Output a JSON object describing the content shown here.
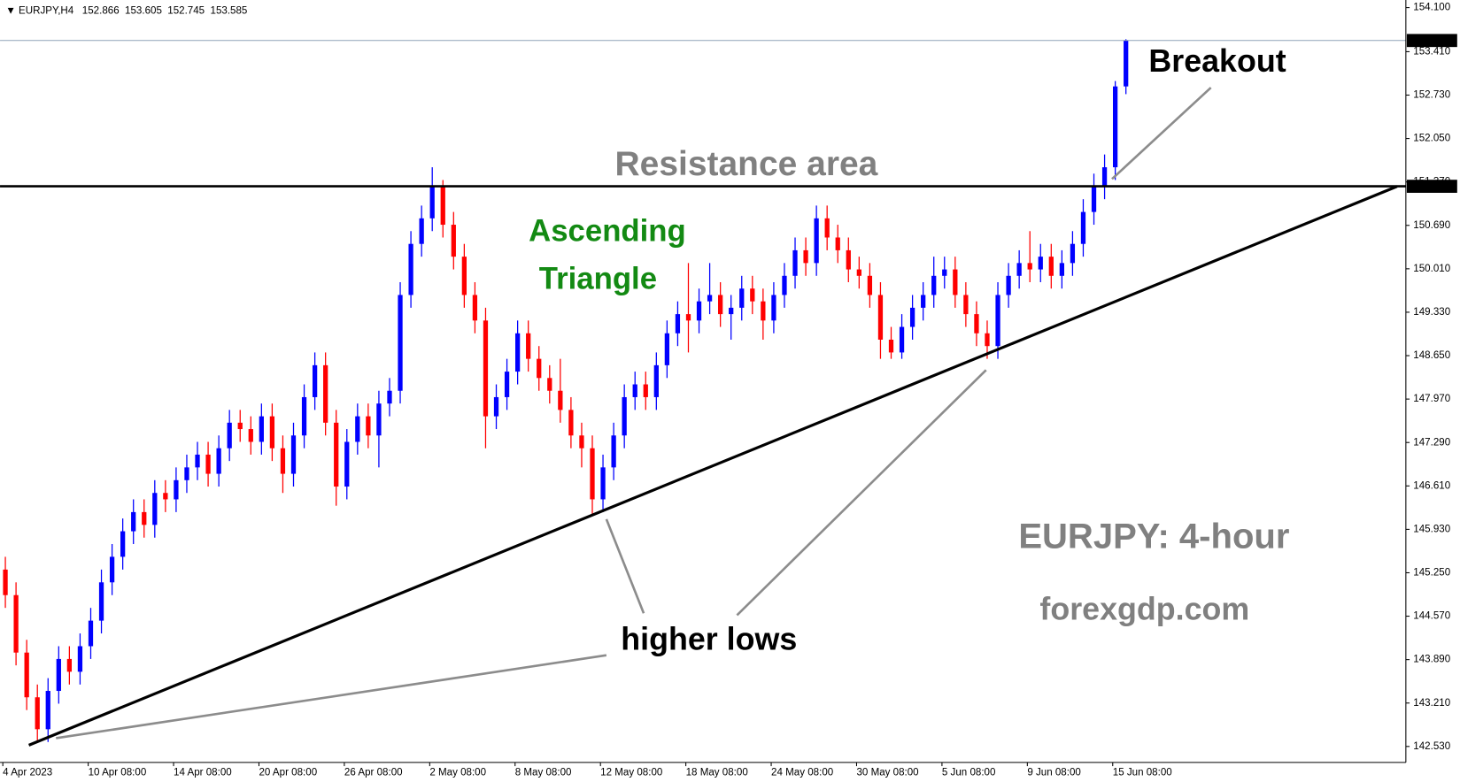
{
  "chart_data": {
    "type": "candlestick",
    "symbol": "EURJPY,H4",
    "categories": [
      "4 Apr 2023",
      null,
      null,
      null,
      null,
      null,
      null,
      null,
      "10 Apr 08:00",
      null,
      null,
      null,
      null,
      null,
      null,
      null,
      "14 Apr 08:00",
      null,
      null,
      null,
      null,
      null,
      null,
      null,
      "20 Apr 08:00",
      null,
      null,
      null,
      null,
      null,
      null,
      null,
      "26 Apr 08:00",
      null,
      null,
      null,
      null,
      null,
      null,
      null,
      "2 May 08:00",
      null,
      null,
      null,
      null,
      null,
      null,
      null,
      "8 May 08:00",
      null,
      null,
      null,
      null,
      null,
      null,
      null,
      "12 May 08:00",
      null,
      null,
      null,
      null,
      null,
      null,
      null,
      "18 May 08:00",
      null,
      null,
      null,
      null,
      null,
      null,
      null,
      "24 May 08:00",
      null,
      null,
      null,
      null,
      null,
      null,
      null,
      "30 May 08:00",
      null,
      null,
      null,
      null,
      null,
      null,
      null,
      "5 Jun 08:00",
      null,
      null,
      null,
      null,
      null,
      null,
      null,
      "9 Jun 08:00",
      null,
      null,
      null,
      null,
      null,
      null,
      null,
      "15 Jun 08:00",
      null
    ],
    "series": [
      {
        "up_color": "#0000ff",
        "down_color": "#ff0000",
        "open": [
          145.3,
          144.9,
          144.0,
          143.3,
          142.8,
          143.4,
          143.9,
          143.7,
          144.1,
          144.5,
          145.1,
          145.5,
          145.9,
          146.2,
          146.0,
          146.5,
          146.4,
          146.7,
          146.9,
          147.1,
          146.8,
          147.2,
          147.6,
          147.5,
          147.3,
          147.7,
          147.2,
          146.8,
          147.4,
          148.0,
          148.5,
          147.6,
          146.6,
          147.3,
          147.7,
          147.4,
          147.9,
          148.1,
          149.6,
          150.4,
          150.8,
          151.3,
          150.7,
          150.2,
          149.6,
          149.2,
          147.7,
          148.0,
          148.4,
          149.0,
          148.6,
          148.3,
          148.1,
          147.8,
          147.4,
          147.2,
          146.4,
          146.9,
          147.4,
          148.0,
          148.2,
          148.0,
          148.5,
          149.0,
          149.3,
          149.2,
          149.5,
          149.6,
          149.3,
          149.4,
          149.7,
          149.5,
          149.2,
          149.6,
          149.9,
          150.3,
          150.1,
          150.8,
          150.5,
          150.3,
          150.0,
          149.9,
          149.6,
          148.9,
          148.7,
          149.1,
          149.4,
          149.6,
          149.9,
          150.0,
          149.6,
          149.3,
          149.0,
          148.8,
          149.6,
          149.9,
          150.1,
          150.0,
          150.2,
          149.9,
          150.1,
          150.4,
          150.9,
          151.3,
          151.6,
          152.866
        ],
        "high": [
          145.5,
          145.1,
          144.2,
          143.5,
          143.6,
          144.1,
          144.1,
          144.3,
          144.7,
          145.3,
          145.7,
          146.1,
          146.4,
          146.4,
          146.7,
          146.7,
          146.9,
          147.1,
          147.3,
          147.3,
          147.4,
          147.8,
          147.8,
          147.7,
          147.9,
          147.9,
          147.4,
          147.6,
          148.2,
          148.7,
          148.7,
          147.8,
          147.5,
          147.9,
          147.9,
          148.1,
          148.3,
          149.8,
          150.6,
          151.0,
          151.6,
          151.4,
          150.9,
          150.4,
          149.8,
          149.4,
          148.2,
          148.6,
          149.2,
          149.2,
          148.8,
          148.5,
          148.6,
          148.0,
          147.6,
          147.4,
          147.1,
          147.6,
          148.2,
          148.4,
          148.4,
          148.7,
          149.2,
          149.5,
          150.1,
          149.7,
          150.1,
          149.8,
          149.6,
          149.9,
          149.9,
          149.7,
          149.8,
          150.1,
          150.5,
          150.5,
          151.0,
          151.0,
          150.7,
          150.5,
          150.2,
          150.1,
          149.8,
          149.1,
          149.3,
          149.6,
          149.8,
          150.2,
          150.2,
          150.2,
          149.8,
          149.5,
          149.2,
          149.8,
          150.1,
          150.3,
          150.6,
          150.4,
          150.4,
          150.3,
          150.6,
          151.1,
          151.5,
          151.8,
          152.95,
          153.605
        ],
        "low": [
          144.7,
          143.8,
          143.1,
          142.6,
          142.6,
          143.2,
          143.5,
          143.5,
          143.9,
          144.3,
          144.9,
          145.3,
          145.7,
          145.8,
          145.8,
          146.2,
          146.2,
          146.5,
          146.7,
          146.6,
          146.6,
          147.0,
          147.3,
          147.1,
          147.1,
          147.0,
          146.5,
          146.6,
          147.2,
          147.8,
          147.4,
          146.3,
          146.4,
          147.1,
          147.2,
          146.9,
          147.7,
          147.9,
          149.4,
          150.2,
          150.6,
          150.5,
          150.0,
          149.4,
          149.0,
          147.2,
          147.5,
          147.8,
          148.2,
          148.4,
          148.1,
          147.9,
          147.6,
          147.2,
          146.9,
          146.15,
          146.2,
          146.7,
          147.2,
          147.8,
          147.8,
          147.8,
          148.3,
          148.8,
          148.7,
          149.0,
          149.3,
          149.1,
          148.9,
          149.2,
          149.3,
          148.9,
          149.0,
          149.4,
          149.7,
          149.9,
          149.9,
          150.3,
          150.1,
          149.8,
          149.7,
          149.4,
          148.6,
          148.6,
          148.6,
          148.9,
          149.2,
          149.4,
          149.7,
          149.4,
          149.1,
          148.8,
          148.6,
          148.6,
          149.4,
          149.7,
          149.8,
          149.8,
          149.7,
          149.7,
          149.9,
          150.2,
          150.7,
          151.1,
          151.4,
          152.745
        ],
        "close": [
          144.9,
          144.0,
          143.3,
          142.8,
          143.4,
          143.9,
          143.7,
          144.1,
          144.5,
          145.1,
          145.5,
          145.9,
          146.2,
          146.0,
          146.5,
          146.4,
          146.7,
          146.9,
          147.1,
          146.8,
          147.2,
          147.6,
          147.5,
          147.3,
          147.7,
          147.2,
          146.8,
          147.4,
          148.0,
          148.5,
          147.6,
          146.6,
          147.3,
          147.7,
          147.4,
          147.9,
          148.1,
          149.6,
          150.4,
          150.8,
          151.3,
          150.7,
          150.2,
          149.6,
          149.2,
          147.7,
          148.0,
          148.4,
          149.0,
          148.6,
          148.3,
          148.1,
          147.8,
          147.4,
          147.2,
          146.4,
          146.9,
          147.4,
          148.0,
          148.2,
          148.0,
          148.5,
          149.0,
          149.3,
          149.2,
          149.5,
          149.6,
          149.3,
          149.4,
          149.7,
          149.5,
          149.2,
          149.6,
          149.9,
          150.3,
          150.1,
          150.8,
          150.5,
          150.3,
          150.0,
          149.9,
          149.6,
          148.9,
          148.7,
          149.1,
          149.4,
          149.6,
          149.9,
          150.0,
          149.6,
          149.3,
          149.0,
          148.8,
          149.6,
          149.9,
          150.1,
          150.0,
          150.2,
          149.9,
          150.1,
          150.4,
          150.9,
          151.3,
          151.6,
          152.866,
          153.585
        ]
      }
    ],
    "ylim": [
      142.28,
      154.19
    ],
    "yticks": [
      {
        "value": 154.1,
        "label": "154.100"
      },
      {
        "value": 153.41,
        "label": "153.410"
      },
      {
        "value": 152.73,
        "label": "152.730"
      },
      {
        "value": 152.05,
        "label": "152.050"
      },
      {
        "value": 151.37,
        "label": "151.370"
      },
      {
        "value": 150.69,
        "label": "150.690"
      },
      {
        "value": 150.01,
        "label": "150.010"
      },
      {
        "value": 149.33,
        "label": "149.330"
      },
      {
        "value": 148.65,
        "label": "148.650"
      },
      {
        "value": 147.97,
        "label": "147.970"
      },
      {
        "value": 147.29,
        "label": "147.290"
      },
      {
        "value": 146.61,
        "label": "146.610"
      },
      {
        "value": 145.93,
        "label": "145.930"
      },
      {
        "value": 145.25,
        "label": "145.250"
      },
      {
        "value": 144.57,
        "label": "144.570"
      },
      {
        "value": 143.89,
        "label": "143.890"
      },
      {
        "value": 143.21,
        "label": "143.210"
      },
      {
        "value": 142.53,
        "label": "142.530"
      }
    ],
    "resistance": {
      "value": 151.302,
      "color": "#000000"
    },
    "trendline": {
      "x": [
        2.2,
        130.4
      ],
      "y": [
        142.55,
        151.3
      ],
      "color": "#000000"
    },
    "current_price_color": "#8fa3b8",
    "annotations": {
      "breakout": "Breakout",
      "resistance_area": "Resistance area",
      "pattern": [
        "Ascending",
        "Triangle"
      ],
      "higher_lows": "higher lows",
      "timeframe": "EURJPY: 4-hour",
      "source": "forexgdp.com"
    }
  }
}
